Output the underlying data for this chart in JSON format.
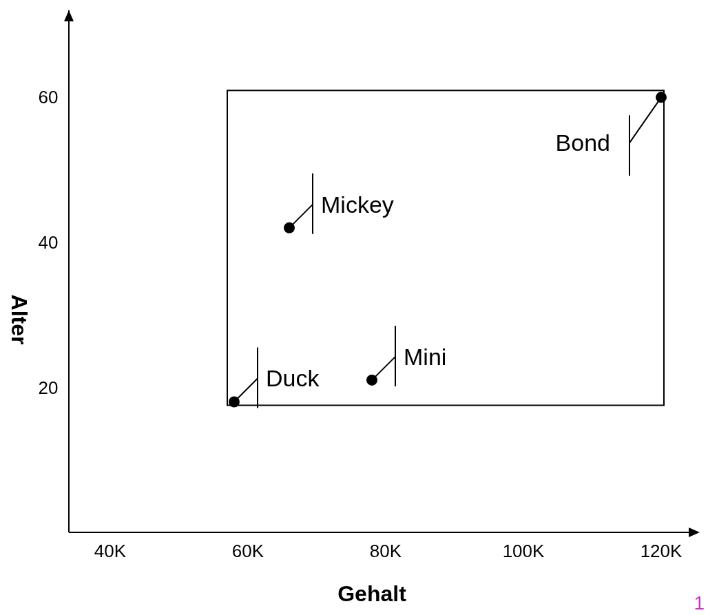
{
  "chart_data": {
    "type": "scatter",
    "xlabel": "Gehalt",
    "ylabel": "Alter",
    "x": [
      58000,
      78000,
      66000,
      120000
    ],
    "series": [
      {
        "color": "#000000",
        "values": [
          18,
          21,
          42,
          60
        ]
      }
    ],
    "marker": "circle",
    "grid": false,
    "xlim": [
      34000,
      124000
    ],
    "ylim": [
      0,
      72
    ],
    "xticks": [
      {
        "value": 40000,
        "label": "40K"
      },
      {
        "value": 60000,
        "label": "60K"
      },
      {
        "value": 80000,
        "label": "80K"
      },
      {
        "value": 100000,
        "label": "100K"
      },
      {
        "value": 120000,
        "label": "120K"
      }
    ],
    "yticks": [
      20,
      40,
      60
    ],
    "annotations": [
      {
        "text": "Duck",
        "x": 58000,
        "y": 18
      },
      {
        "text": "Mini",
        "x": 78000,
        "y": 21
      },
      {
        "text": "Mickey",
        "x": 66000,
        "y": 42
      },
      {
        "text": "Bond",
        "x": 120000,
        "y": 60
      },
      "1"
    ]
  }
}
